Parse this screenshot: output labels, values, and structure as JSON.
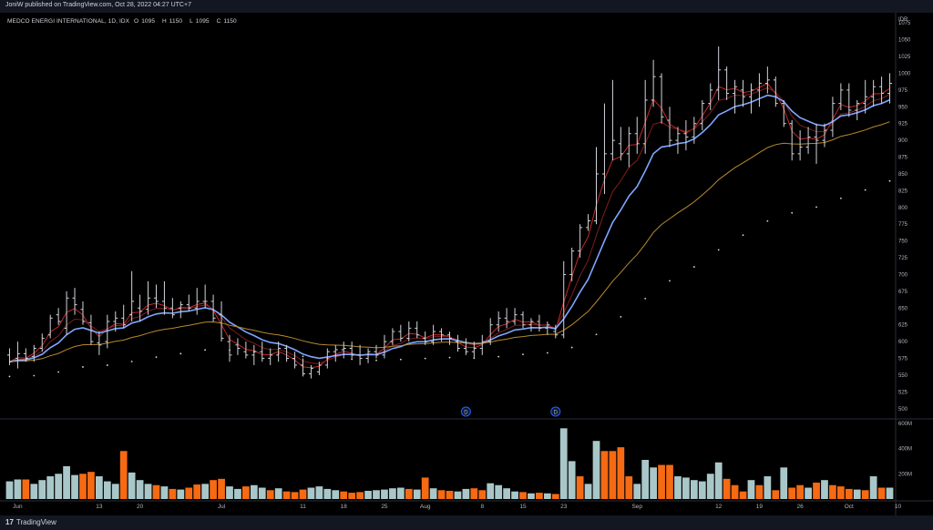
{
  "header": {
    "published_by": "JoniW published on TradingView.com, Oct 28, 2022 04:27 UTC+7"
  },
  "legend": {
    "symbol": "MEDCO ENERGI INTERNATIONAL, 1D, IDX",
    "o_label": "O",
    "o_value": "1095",
    "h_label": "H",
    "h_value": "1150",
    "l_label": "L",
    "l_value": "1095",
    "c_label": "C",
    "c_value": "1150"
  },
  "footer": {
    "brand": "TradingView",
    "logo_glyph": "17"
  },
  "colors": {
    "background": "#000000",
    "bar": "#d1d4dc",
    "ma_fast": "#c62828",
    "ma_mid": "#7f1d1d",
    "ma_blue": "#5b8def",
    "ma_gold": "#b8892e",
    "ma_dots": "#e6e0b0",
    "vol_up": "#a9c7c9",
    "vol_down": "#f56a13",
    "marker": "#2962ff"
  },
  "chart_data": {
    "type": "bar",
    "subtype": "ohlc",
    "title": "MEDCO ENERGI INTERNATIONAL, 1D, IDX",
    "price_axis_unit": "IDR",
    "ylim": [
      487.5,
      1087.5
    ],
    "price_ticks": [
      1075,
      1050,
      1025,
      1000,
      975,
      950,
      925,
      900,
      875,
      850,
      825,
      800,
      775,
      750,
      725,
      700,
      675,
      650,
      625,
      600,
      575,
      550,
      525,
      500
    ],
    "volume_ticks": [
      "600M",
      "400M",
      "200M"
    ],
    "volume_tick_values": [
      600,
      400,
      200
    ],
    "volume_unit": "M",
    "x_labels": [
      {
        "label": "Jun",
        "i": 1
      },
      {
        "label": "13",
        "i": 11
      },
      {
        "label": "20",
        "i": 16
      },
      {
        "label": "Jul",
        "i": 26
      },
      {
        "label": "11",
        "i": 36
      },
      {
        "label": "18",
        "i": 41
      },
      {
        "label": "25",
        "i": 46
      },
      {
        "label": "Aug",
        "i": 51
      },
      {
        "label": "8",
        "i": 58
      },
      {
        "label": "15",
        "i": 63
      },
      {
        "label": "23",
        "i": 68
      },
      {
        "label": "Sep",
        "i": 77
      },
      {
        "label": "12",
        "i": 87
      },
      {
        "label": "19",
        "i": 92
      },
      {
        "label": "26",
        "i": 97
      },
      {
        "label": "Oct",
        "i": 103
      },
      {
        "label": "10",
        "i": 109
      }
    ],
    "events": [
      {
        "label": "D",
        "i": 56
      },
      {
        "label": "D",
        "i": 67
      }
    ],
    "bars": [
      {
        "o": 580,
        "h": 590,
        "l": 565,
        "c": 570,
        "v": 140,
        "up": true
      },
      {
        "o": 575,
        "h": 600,
        "l": 560,
        "c": 582,
        "v": 155,
        "up": true
      },
      {
        "o": 582,
        "h": 590,
        "l": 570,
        "c": 575,
        "v": 155,
        "up": false
      },
      {
        "o": 578,
        "h": 595,
        "l": 570,
        "c": 590,
        "v": 120,
        "up": true
      },
      {
        "o": 590,
        "h": 612,
        "l": 585,
        "c": 605,
        "v": 150,
        "up": true
      },
      {
        "o": 610,
        "h": 640,
        "l": 605,
        "c": 635,
        "v": 180,
        "up": true
      },
      {
        "o": 640,
        "h": 650,
        "l": 625,
        "c": 630,
        "v": 200,
        "up": true
      },
      {
        "o": 620,
        "h": 675,
        "l": 610,
        "c": 665,
        "v": 260,
        "up": true
      },
      {
        "o": 665,
        "h": 680,
        "l": 640,
        "c": 655,
        "v": 190,
        "up": true
      },
      {
        "o": 648,
        "h": 660,
        "l": 625,
        "c": 630,
        "v": 200,
        "up": false
      },
      {
        "o": 628,
        "h": 640,
        "l": 595,
        "c": 600,
        "v": 215,
        "up": false
      },
      {
        "o": 598,
        "h": 615,
        "l": 580,
        "c": 595,
        "v": 180,
        "up": true
      },
      {
        "o": 600,
        "h": 640,
        "l": 590,
        "c": 630,
        "v": 140,
        "up": true
      },
      {
        "o": 630,
        "h": 645,
        "l": 615,
        "c": 635,
        "v": 120,
        "up": true
      },
      {
        "o": 635,
        "h": 655,
        "l": 620,
        "c": 625,
        "v": 380,
        "up": false
      },
      {
        "o": 640,
        "h": 705,
        "l": 630,
        "c": 660,
        "v": 210,
        "up": true
      },
      {
        "o": 650,
        "h": 670,
        "l": 630,
        "c": 645,
        "v": 150,
        "up": true
      },
      {
        "o": 648,
        "h": 690,
        "l": 640,
        "c": 665,
        "v": 120,
        "up": true
      },
      {
        "o": 665,
        "h": 685,
        "l": 650,
        "c": 660,
        "v": 110,
        "up": false
      },
      {
        "o": 660,
        "h": 690,
        "l": 640,
        "c": 650,
        "v": 100,
        "up": true
      },
      {
        "o": 650,
        "h": 665,
        "l": 635,
        "c": 640,
        "v": 80,
        "up": false
      },
      {
        "o": 650,
        "h": 660,
        "l": 635,
        "c": 655,
        "v": 75,
        "up": true
      },
      {
        "o": 655,
        "h": 670,
        "l": 645,
        "c": 650,
        "v": 90,
        "up": false
      },
      {
        "o": 650,
        "h": 680,
        "l": 640,
        "c": 660,
        "v": 115,
        "up": false
      },
      {
        "o": 660,
        "h": 685,
        "l": 650,
        "c": 660,
        "v": 120,
        "up": true
      },
      {
        "o": 660,
        "h": 670,
        "l": 630,
        "c": 635,
        "v": 150,
        "up": false
      },
      {
        "o": 640,
        "h": 660,
        "l": 600,
        "c": 605,
        "v": 160,
        "up": false
      },
      {
        "o": 600,
        "h": 610,
        "l": 570,
        "c": 580,
        "v": 100,
        "up": true
      },
      {
        "o": 595,
        "h": 605,
        "l": 580,
        "c": 590,
        "v": 80,
        "up": true
      },
      {
        "o": 585,
        "h": 600,
        "l": 575,
        "c": 580,
        "v": 100,
        "up": false
      },
      {
        "o": 580,
        "h": 595,
        "l": 565,
        "c": 585,
        "v": 110,
        "up": true
      },
      {
        "o": 585,
        "h": 600,
        "l": 570,
        "c": 575,
        "v": 90,
        "up": true
      },
      {
        "o": 575,
        "h": 590,
        "l": 565,
        "c": 580,
        "v": 70,
        "up": false
      },
      {
        "o": 580,
        "h": 600,
        "l": 570,
        "c": 590,
        "v": 85,
        "up": true
      },
      {
        "o": 590,
        "h": 595,
        "l": 570,
        "c": 575,
        "v": 60,
        "up": false
      },
      {
        "o": 575,
        "h": 585,
        "l": 560,
        "c": 565,
        "v": 55,
        "up": false
      },
      {
        "o": 565,
        "h": 575,
        "l": 548,
        "c": 552,
        "v": 75,
        "up": false
      },
      {
        "o": 552,
        "h": 565,
        "l": 545,
        "c": 560,
        "v": 90,
        "up": true
      },
      {
        "o": 555,
        "h": 570,
        "l": 550,
        "c": 565,
        "v": 100,
        "up": true
      },
      {
        "o": 565,
        "h": 590,
        "l": 560,
        "c": 585,
        "v": 80,
        "up": true
      },
      {
        "o": 585,
        "h": 595,
        "l": 570,
        "c": 588,
        "v": 70,
        "up": true
      },
      {
        "o": 588,
        "h": 600,
        "l": 575,
        "c": 590,
        "v": 60,
        "up": false
      },
      {
        "o": 590,
        "h": 600,
        "l": 575,
        "c": 580,
        "v": 50,
        "up": false
      },
      {
        "o": 580,
        "h": 595,
        "l": 565,
        "c": 575,
        "v": 55,
        "up": false
      },
      {
        "o": 575,
        "h": 590,
        "l": 568,
        "c": 585,
        "v": 65,
        "up": true
      },
      {
        "o": 585,
        "h": 595,
        "l": 575,
        "c": 580,
        "v": 70,
        "up": true
      },
      {
        "o": 580,
        "h": 610,
        "l": 575,
        "c": 600,
        "v": 75,
        "up": true
      },
      {
        "o": 600,
        "h": 620,
        "l": 595,
        "c": 615,
        "v": 85,
        "up": true
      },
      {
        "o": 615,
        "h": 625,
        "l": 600,
        "c": 605,
        "v": 90,
        "up": true
      },
      {
        "o": 605,
        "h": 630,
        "l": 600,
        "c": 620,
        "v": 80,
        "up": false
      },
      {
        "o": 620,
        "h": 630,
        "l": 605,
        "c": 610,
        "v": 75,
        "up": true
      },
      {
        "o": 605,
        "h": 615,
        "l": 595,
        "c": 600,
        "v": 170,
        "up": false
      },
      {
        "o": 600,
        "h": 625,
        "l": 595,
        "c": 615,
        "v": 85,
        "up": true
      },
      {
        "o": 615,
        "h": 620,
        "l": 600,
        "c": 610,
        "v": 70,
        "up": false
      },
      {
        "o": 610,
        "h": 615,
        "l": 595,
        "c": 605,
        "v": 65,
        "up": false
      },
      {
        "o": 600,
        "h": 610,
        "l": 585,
        "c": 590,
        "v": 60,
        "up": true
      },
      {
        "o": 590,
        "h": 605,
        "l": 580,
        "c": 585,
        "v": 80,
        "up": true
      },
      {
        "o": 585,
        "h": 600,
        "l": 575,
        "c": 590,
        "v": 85,
        "up": false
      },
      {
        "o": 590,
        "h": 610,
        "l": 580,
        "c": 600,
        "v": 70,
        "up": false
      },
      {
        "o": 600,
        "h": 635,
        "l": 595,
        "c": 625,
        "v": 125,
        "up": true
      },
      {
        "o": 625,
        "h": 645,
        "l": 615,
        "c": 635,
        "v": 110,
        "up": true
      },
      {
        "o": 635,
        "h": 650,
        "l": 620,
        "c": 630,
        "v": 85,
        "up": true
      },
      {
        "o": 630,
        "h": 650,
        "l": 625,
        "c": 640,
        "v": 60,
        "up": true
      },
      {
        "o": 640,
        "h": 645,
        "l": 620,
        "c": 625,
        "v": 55,
        "up": false
      },
      {
        "o": 625,
        "h": 635,
        "l": 615,
        "c": 630,
        "v": 45,
        "up": true
      },
      {
        "o": 630,
        "h": 640,
        "l": 615,
        "c": 620,
        "v": 50,
        "up": false
      },
      {
        "o": 620,
        "h": 630,
        "l": 610,
        "c": 625,
        "v": 45,
        "up": true
      },
      {
        "o": 615,
        "h": 625,
        "l": 605,
        "c": 610,
        "v": 40,
        "up": false
      },
      {
        "o": 610,
        "h": 720,
        "l": 605,
        "c": 700,
        "v": 560,
        "up": true
      },
      {
        "o": 700,
        "h": 740,
        "l": 690,
        "c": 735,
        "v": 300,
        "up": true
      },
      {
        "o": 735,
        "h": 775,
        "l": 725,
        "c": 770,
        "v": 180,
        "up": false
      },
      {
        "o": 770,
        "h": 790,
        "l": 765,
        "c": 780,
        "v": 120,
        "up": true
      },
      {
        "o": 780,
        "h": 890,
        "l": 775,
        "c": 850,
        "v": 460,
        "up": true
      },
      {
        "o": 850,
        "h": 955,
        "l": 820,
        "c": 880,
        "v": 380,
        "up": false
      },
      {
        "o": 880,
        "h": 990,
        "l": 870,
        "c": 900,
        "v": 380,
        "up": false
      },
      {
        "o": 895,
        "h": 920,
        "l": 870,
        "c": 880,
        "v": 410,
        "up": false
      },
      {
        "o": 880,
        "h": 920,
        "l": 860,
        "c": 910,
        "v": 180,
        "up": false
      },
      {
        "o": 910,
        "h": 935,
        "l": 880,
        "c": 895,
        "v": 120,
        "up": true
      },
      {
        "o": 895,
        "h": 990,
        "l": 880,
        "c": 960,
        "v": 310,
        "up": true
      },
      {
        "o": 960,
        "h": 1020,
        "l": 950,
        "c": 995,
        "v": 250,
        "up": true
      },
      {
        "o": 995,
        "h": 1000,
        "l": 925,
        "c": 935,
        "v": 270,
        "up": false
      },
      {
        "o": 930,
        "h": 950,
        "l": 890,
        "c": 900,
        "v": 270,
        "up": false
      },
      {
        "o": 900,
        "h": 920,
        "l": 880,
        "c": 910,
        "v": 180,
        "up": true
      },
      {
        "o": 910,
        "h": 930,
        "l": 885,
        "c": 905,
        "v": 170,
        "up": true
      },
      {
        "o": 905,
        "h": 935,
        "l": 895,
        "c": 925,
        "v": 150,
        "up": true
      },
      {
        "o": 925,
        "h": 960,
        "l": 915,
        "c": 955,
        "v": 140,
        "up": true
      },
      {
        "o": 955,
        "h": 985,
        "l": 945,
        "c": 975,
        "v": 200,
        "up": true
      },
      {
        "o": 975,
        "h": 1040,
        "l": 960,
        "c": 1005,
        "v": 290,
        "up": true
      },
      {
        "o": 1005,
        "h": 1010,
        "l": 960,
        "c": 970,
        "v": 160,
        "up": false
      },
      {
        "o": 970,
        "h": 990,
        "l": 940,
        "c": 980,
        "v": 110,
        "up": false
      },
      {
        "o": 975,
        "h": 990,
        "l": 950,
        "c": 965,
        "v": 60,
        "up": false
      },
      {
        "o": 965,
        "h": 985,
        "l": 940,
        "c": 975,
        "v": 150,
        "up": true
      },
      {
        "o": 975,
        "h": 1000,
        "l": 950,
        "c": 985,
        "v": 110,
        "up": false
      },
      {
        "o": 985,
        "h": 1010,
        "l": 970,
        "c": 990,
        "v": 180,
        "up": true
      },
      {
        "o": 990,
        "h": 995,
        "l": 950,
        "c": 955,
        "v": 70,
        "up": false
      },
      {
        "o": 955,
        "h": 960,
        "l": 920,
        "c": 925,
        "v": 250,
        "up": true
      },
      {
        "o": 925,
        "h": 930,
        "l": 870,
        "c": 880,
        "v": 90,
        "up": false
      },
      {
        "o": 880,
        "h": 915,
        "l": 870,
        "c": 890,
        "v": 110,
        "up": false
      },
      {
        "o": 890,
        "h": 920,
        "l": 880,
        "c": 905,
        "v": 90,
        "up": true
      },
      {
        "o": 905,
        "h": 925,
        "l": 865,
        "c": 900,
        "v": 130,
        "up": false
      },
      {
        "o": 900,
        "h": 925,
        "l": 890,
        "c": 915,
        "v": 150,
        "up": true
      },
      {
        "o": 915,
        "h": 965,
        "l": 905,
        "c": 955,
        "v": 110,
        "up": false
      },
      {
        "o": 955,
        "h": 985,
        "l": 945,
        "c": 975,
        "v": 100,
        "up": false
      },
      {
        "o": 975,
        "h": 985,
        "l": 935,
        "c": 945,
        "v": 80,
        "up": false
      },
      {
        "o": 945,
        "h": 960,
        "l": 930,
        "c": 955,
        "v": 75,
        "up": true
      },
      {
        "o": 955,
        "h": 990,
        "l": 940,
        "c": 965,
        "v": 70,
        "up": false
      },
      {
        "o": 965,
        "h": 990,
        "l": 950,
        "c": 980,
        "v": 180,
        "up": true
      },
      {
        "o": 980,
        "h": 995,
        "l": 955,
        "c": 970,
        "v": 90,
        "up": false
      },
      {
        "o": 970,
        "h": 1000,
        "l": 955,
        "c": 985,
        "v": 90,
        "up": true
      }
    ]
  }
}
